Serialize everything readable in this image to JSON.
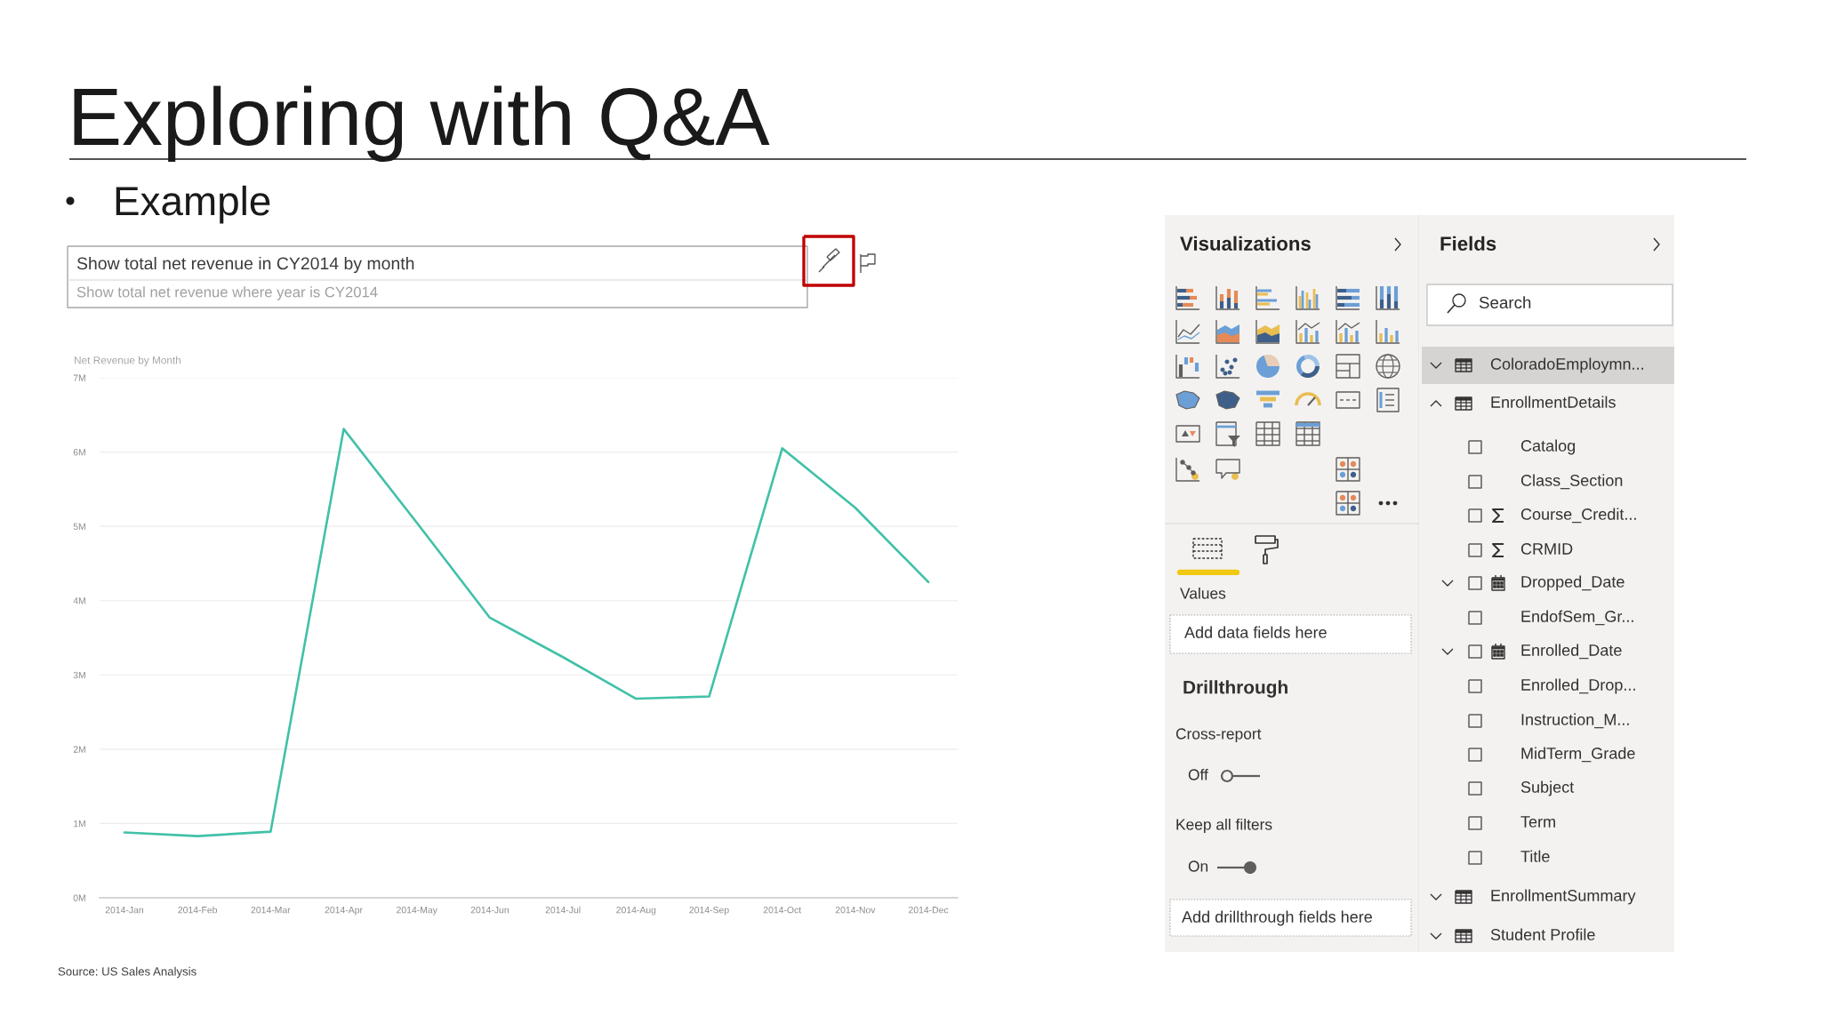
{
  "chart_data": [
    {
      "type": "line",
      "title": "Net Revenue by Month",
      "categories": [
        "2014-Jan",
        "2014-Feb",
        "2014-Mar",
        "2014-Apr",
        "2014-May",
        "2014-Jun",
        "2014-Jul",
        "2014-Aug",
        "2014-Sep",
        "2014-Oct",
        "2014-Nov",
        "2014-Dec"
      ],
      "series": [
        {
          "color": "#41c1a8",
          "values": [
            0.88,
            0.83,
            0.89,
            6.31,
            5.05,
            3.77,
            3.24,
            2.68,
            2.71,
            6.05,
            5.25,
            4.25
          ]
        }
      ],
      "ylim": [
        0,
        7
      ],
      "yticks": [
        {
          "value": 0,
          "label": "0M"
        },
        {
          "value": 1,
          "label": "1M"
        },
        {
          "value": 2,
          "label": "2M"
        },
        {
          "value": 3,
          "label": "3M"
        },
        {
          "value": 4,
          "label": "4M"
        },
        {
          "value": 5,
          "label": "5M"
        },
        {
          "value": 6,
          "label": "6M"
        },
        {
          "value": 7,
          "label": "7M"
        }
      ],
      "grid": "y",
      "annotations": [
        "Exploring with Q&A",
        "Example",
        "Show total net revenue in CY2014 by month",
        "Show total net revenue where year is CY2014",
        "Source: US Sales Analysis"
      ]
    },
    {
      "type": "other",
      "title": "Visualizations",
      "annotations": [
        "Values",
        "Add data fields here",
        "Drillthrough",
        "Cross-report",
        "Off",
        "Keep all filters",
        "On",
        "Add drillthrough fields here"
      ]
    },
    {
      "type": "other",
      "title": "Fields",
      "annotations": [
        "Search",
        "ColoradoEmploymn...",
        "EnrollmentDetails",
        "Catalog",
        "Class_Section",
        "Course_Credit...",
        "CRMID",
        "Dropped_Date",
        "EndofSem_Gr...",
        "Enrolled_Date",
        "Enrolled_Drop...",
        "Instruction_M...",
        "MidTerm_Grade",
        "Subject",
        "Term",
        "Title",
        "EnrollmentSummary",
        "Student Profile"
      ]
    }
  ]
}
